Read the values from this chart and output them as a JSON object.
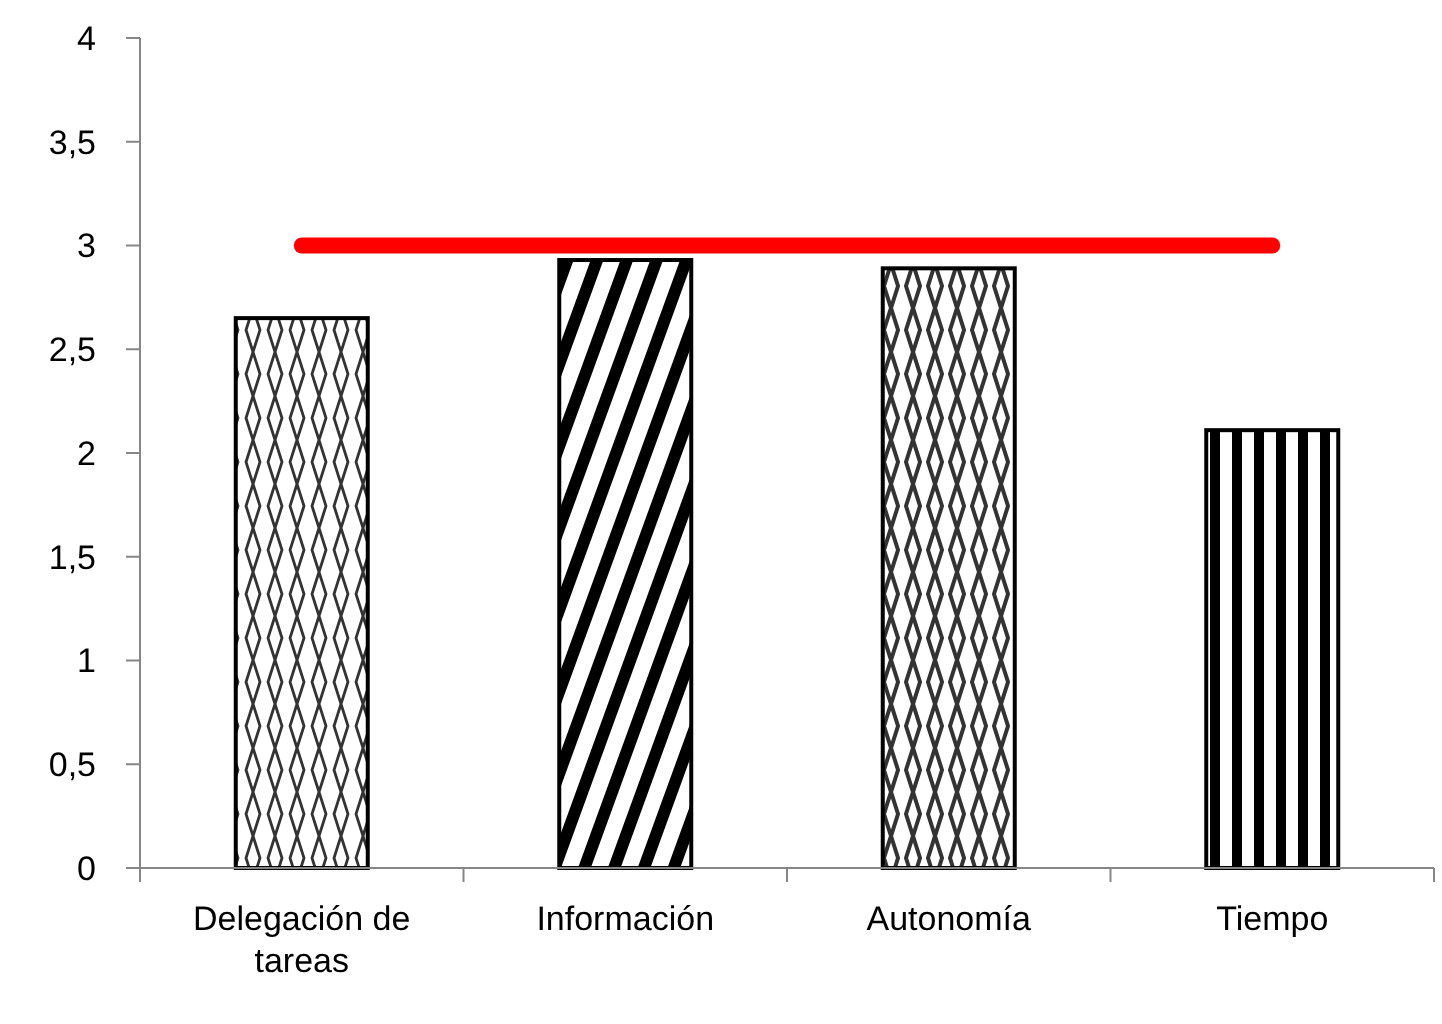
{
  "chart_data": {
    "type": "bar",
    "categories": [
      "Delegación de tareas",
      "Información",
      "Autonomía",
      "Tiempo"
    ],
    "series": [
      {
        "color": "#000000",
        "values": [
          2.65,
          2.93,
          2.89,
          2.11
        ]
      },
      {
        "type": "line",
        "color": "#ff0000",
        "values": [
          3,
          3,
          3,
          3
        ]
      }
    ],
    "ylim": [
      0,
      4
    ],
    "yticks": [
      0,
      {
        "value": 0.5,
        "label": "0,5"
      },
      1,
      {
        "value": 1.5,
        "label": "1,5"
      },
      2,
      {
        "value": 2.5,
        "label": "2,5"
      },
      3,
      {
        "value": 3.5,
        "label": "3,5"
      },
      4
    ],
    "grid": false
  }
}
